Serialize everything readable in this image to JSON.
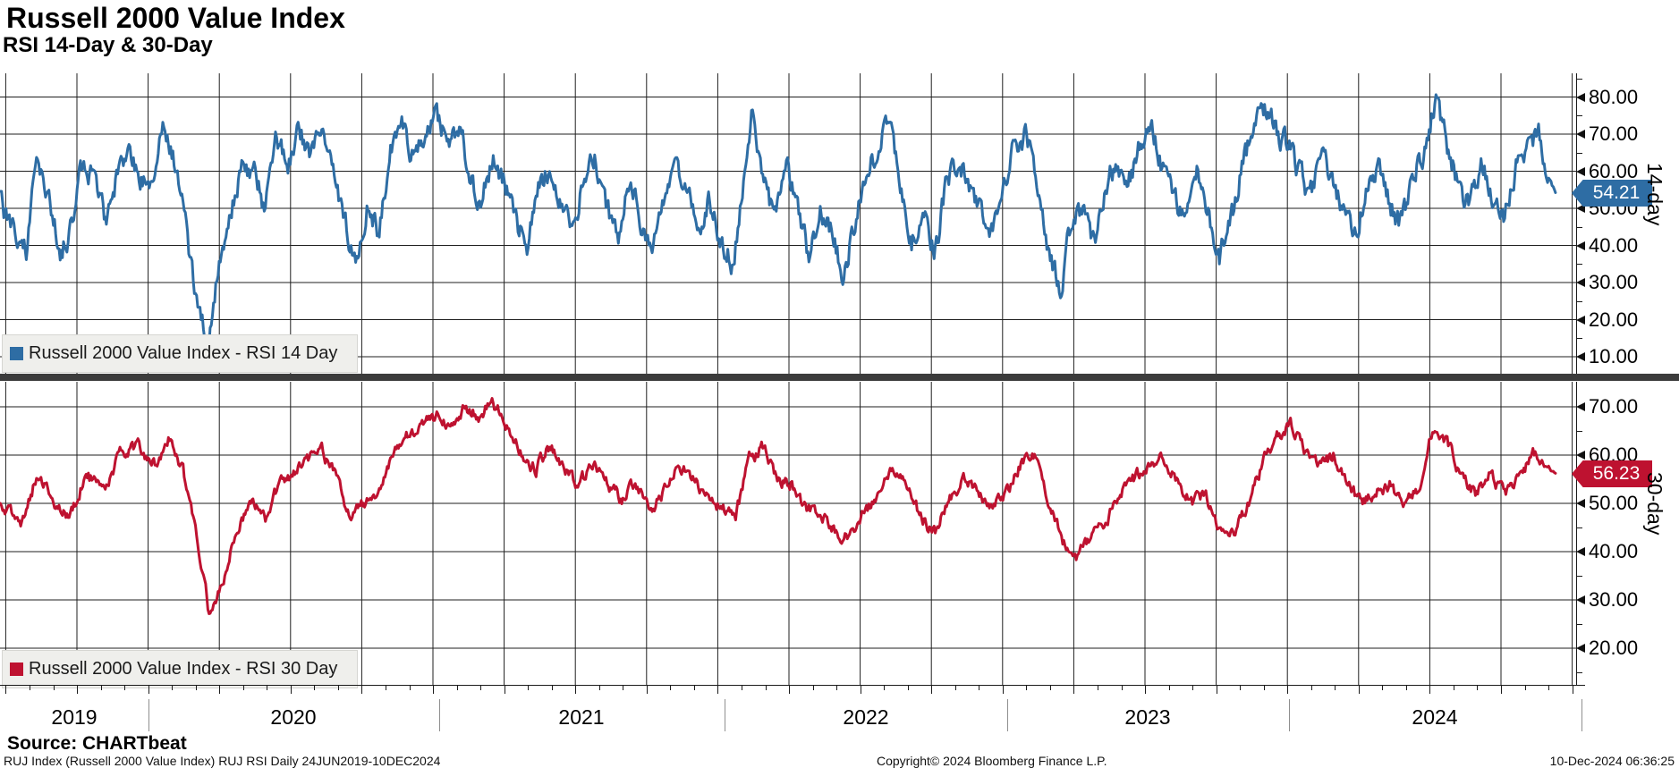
{
  "header": {
    "title": "Russell 2000 Value Index",
    "subtitle": "RSI 14-Day & 30-Day"
  },
  "colors": {
    "rsi14_blue": "#2e6da4",
    "rsi30_red": "#be1230",
    "grid": "#1f1f1f",
    "divider": "#3c3c3c",
    "legend_bg": "#efefec"
  },
  "x_axis": {
    "years": [
      "2019",
      "2020",
      "2021",
      "2022",
      "2023",
      "2024"
    ]
  },
  "panels": [
    {
      "id": "rsi14",
      "legend_label": "Russell 2000 Value Index - RSI 14 Day",
      "axis_title": "14-day",
      "last_value": 54.21,
      "last_value_label": "54.21",
      "color": "#2e6da4",
      "ticks": [
        80,
        70,
        60,
        50,
        40,
        30,
        20,
        10
      ],
      "tick_labels": [
        "80.00",
        "70.00",
        "60.00",
        "50.00",
        "40.00",
        "30.00",
        "20.00",
        "10.00"
      ],
      "minor_ticks": [
        85,
        75,
        65,
        55,
        45,
        35,
        25,
        15
      ]
    },
    {
      "id": "rsi30",
      "legend_label": "Russell 2000 Value Index - RSI 30 Day",
      "axis_title": "30-day",
      "last_value": 56.23,
      "last_value_label": "56.23",
      "color": "#be1230",
      "ticks": [
        70,
        60,
        50,
        40,
        30,
        20
      ],
      "tick_labels": [
        "70.00",
        "60.00",
        "50.00",
        "40.00",
        "30.00",
        "20.00"
      ],
      "minor_ticks": [
        65,
        55,
        45,
        35,
        25,
        15
      ]
    }
  ],
  "footer": {
    "source": "Source: CHARTbeat",
    "ticker_line": "RUJ Index (Russell 2000 Value Index) RUJ RSI  Daily 24JUN2019-10DEC2024",
    "copyright": "Copyright© 2024 Bloomberg Finance L.P.",
    "timestamp": "10-Dec-2024 06:36:25"
  },
  "chart_data": {
    "type": "line",
    "x_unit": "decimal_year",
    "x_range": [
      2019.48,
      2024.94
    ],
    "date_range": "24JUN2019-10DEC2024",
    "grid": true,
    "legend_position": "bottom-left-inside",
    "series": [
      {
        "name": "Russell 2000 Value Index - RSI 14 Day",
        "panel": 0,
        "ylim_labels": [
          10,
          80
        ],
        "last_value": 54.21,
        "noise_amp": 2.8,
        "seed": 14,
        "anchors": [
          [
            2019.48,
            52
          ],
          [
            2019.53,
            42
          ],
          [
            2019.57,
            38
          ],
          [
            2019.61,
            64
          ],
          [
            2019.65,
            54
          ],
          [
            2019.69,
            38
          ],
          [
            2019.73,
            45
          ],
          [
            2019.77,
            63
          ],
          [
            2019.81,
            57
          ],
          [
            2019.85,
            47
          ],
          [
            2019.89,
            58
          ],
          [
            2019.93,
            68
          ],
          [
            2019.97,
            58
          ],
          [
            2020.01,
            56
          ],
          [
            2020.05,
            71
          ],
          [
            2020.09,
            62
          ],
          [
            2020.13,
            45
          ],
          [
            2020.17,
            24
          ],
          [
            2020.21,
            16
          ],
          [
            2020.25,
            37
          ],
          [
            2020.29,
            48
          ],
          [
            2020.33,
            62
          ],
          [
            2020.37,
            60
          ],
          [
            2020.41,
            50
          ],
          [
            2020.45,
            68
          ],
          [
            2020.49,
            63
          ],
          [
            2020.53,
            71
          ],
          [
            2020.57,
            64
          ],
          [
            2020.61,
            74
          ],
          [
            2020.65,
            58
          ],
          [
            2020.69,
            46
          ],
          [
            2020.73,
            34
          ],
          [
            2020.77,
            52
          ],
          [
            2020.81,
            42
          ],
          [
            2020.85,
            67
          ],
          [
            2020.89,
            73
          ],
          [
            2020.93,
            64
          ],
          [
            2020.97,
            71
          ],
          [
            2021.01,
            74
          ],
          [
            2021.05,
            67
          ],
          [
            2021.09,
            73
          ],
          [
            2021.13,
            58
          ],
          [
            2021.17,
            52
          ],
          [
            2021.21,
            65
          ],
          [
            2021.25,
            57
          ],
          [
            2021.29,
            46
          ],
          [
            2021.33,
            40
          ],
          [
            2021.37,
            56
          ],
          [
            2021.41,
            61
          ],
          [
            2021.45,
            50
          ],
          [
            2021.49,
            43
          ],
          [
            2021.53,
            59
          ],
          [
            2021.57,
            63
          ],
          [
            2021.61,
            49
          ],
          [
            2021.65,
            43
          ],
          [
            2021.69,
            58
          ],
          [
            2021.73,
            47
          ],
          [
            2021.77,
            40
          ],
          [
            2021.81,
            54
          ],
          [
            2021.85,
            64
          ],
          [
            2021.89,
            54
          ],
          [
            2021.93,
            44
          ],
          [
            2021.97,
            53
          ],
          [
            2022.01,
            42
          ],
          [
            2022.05,
            35
          ],
          [
            2022.09,
            55
          ],
          [
            2022.12,
            76
          ],
          [
            2022.16,
            58
          ],
          [
            2022.2,
            47
          ],
          [
            2022.24,
            61
          ],
          [
            2022.28,
            51
          ],
          [
            2022.32,
            37
          ],
          [
            2022.36,
            51
          ],
          [
            2022.4,
            43
          ],
          [
            2022.44,
            31
          ],
          [
            2022.48,
            46
          ],
          [
            2022.52,
            59
          ],
          [
            2022.56,
            66
          ],
          [
            2022.6,
            73
          ],
          [
            2022.64,
            58
          ],
          [
            2022.68,
            41
          ],
          [
            2022.72,
            49
          ],
          [
            2022.76,
            37
          ],
          [
            2022.8,
            56
          ],
          [
            2022.84,
            63
          ],
          [
            2022.88,
            57
          ],
          [
            2022.92,
            49
          ],
          [
            2022.96,
            43
          ],
          [
            2023.0,
            57
          ],
          [
            2023.04,
            66
          ],
          [
            2023.08,
            69
          ],
          [
            2023.12,
            58
          ],
          [
            2023.16,
            38
          ],
          [
            2023.2,
            27
          ],
          [
            2023.24,
            46
          ],
          [
            2023.28,
            51
          ],
          [
            2023.32,
            41
          ],
          [
            2023.36,
            56
          ],
          [
            2023.4,
            63
          ],
          [
            2023.44,
            57
          ],
          [
            2023.48,
            67
          ],
          [
            2023.52,
            71
          ],
          [
            2023.56,
            61
          ],
          [
            2023.6,
            54
          ],
          [
            2023.64,
            44
          ],
          [
            2023.68,
            59
          ],
          [
            2023.72,
            49
          ],
          [
            2023.76,
            37
          ],
          [
            2023.8,
            46
          ],
          [
            2023.84,
            61
          ],
          [
            2023.88,
            71
          ],
          [
            2023.92,
            78
          ],
          [
            2023.96,
            71
          ],
          [
            2024.0,
            67
          ],
          [
            2024.04,
            59
          ],
          [
            2024.08,
            54
          ],
          [
            2024.12,
            63
          ],
          [
            2024.16,
            57
          ],
          [
            2024.2,
            49
          ],
          [
            2024.24,
            43
          ],
          [
            2024.28,
            56
          ],
          [
            2024.32,
            61
          ],
          [
            2024.36,
            51
          ],
          [
            2024.4,
            45
          ],
          [
            2024.44,
            59
          ],
          [
            2024.48,
            66
          ],
          [
            2024.52,
            80
          ],
          [
            2024.56,
            67
          ],
          [
            2024.6,
            57
          ],
          [
            2024.64,
            49
          ],
          [
            2024.68,
            63
          ],
          [
            2024.72,
            54
          ],
          [
            2024.76,
            47
          ],
          [
            2024.8,
            61
          ],
          [
            2024.84,
            67
          ],
          [
            2024.88,
            71
          ],
          [
            2024.91,
            60
          ],
          [
            2024.94,
            54.21
          ]
        ]
      },
      {
        "name": "Russell 2000 Value Index - RSI 30 Day",
        "panel": 1,
        "ylim_labels": [
          20,
          70
        ],
        "last_value": 56.23,
        "noise_amp": 1.1,
        "seed": 30,
        "anchors": [
          [
            2019.48,
            50
          ],
          [
            2019.55,
            46
          ],
          [
            2019.61,
            56
          ],
          [
            2019.67,
            50
          ],
          [
            2019.72,
            47
          ],
          [
            2019.78,
            56
          ],
          [
            2019.84,
            53
          ],
          [
            2019.9,
            60
          ],
          [
            2019.96,
            62
          ],
          [
            2020.02,
            58
          ],
          [
            2020.07,
            63
          ],
          [
            2020.12,
            57
          ],
          [
            2020.16,
            47
          ],
          [
            2020.21,
            28
          ],
          [
            2020.26,
            33
          ],
          [
            2020.31,
            45
          ],
          [
            2020.36,
            50
          ],
          [
            2020.41,
            47
          ],
          [
            2020.46,
            54
          ],
          [
            2020.51,
            56
          ],
          [
            2020.56,
            59
          ],
          [
            2020.61,
            61
          ],
          [
            2020.66,
            55
          ],
          [
            2020.71,
            47
          ],
          [
            2020.76,
            50
          ],
          [
            2020.81,
            52
          ],
          [
            2020.86,
            61
          ],
          [
            2020.91,
            64
          ],
          [
            2020.96,
            66
          ],
          [
            2021.01,
            68
          ],
          [
            2021.06,
            65
          ],
          [
            2021.11,
            70
          ],
          [
            2021.16,
            68
          ],
          [
            2021.21,
            71
          ],
          [
            2021.26,
            66
          ],
          [
            2021.31,
            60
          ],
          [
            2021.36,
            57
          ],
          [
            2021.41,
            62
          ],
          [
            2021.46,
            57
          ],
          [
            2021.51,
            54
          ],
          [
            2021.56,
            58
          ],
          [
            2021.61,
            54
          ],
          [
            2021.66,
            51
          ],
          [
            2021.71,
            54
          ],
          [
            2021.76,
            49
          ],
          [
            2021.81,
            52
          ],
          [
            2021.86,
            58
          ],
          [
            2021.91,
            55
          ],
          [
            2021.96,
            51
          ],
          [
            2022.01,
            49
          ],
          [
            2022.06,
            47
          ],
          [
            2022.11,
            59
          ],
          [
            2022.16,
            62
          ],
          [
            2022.21,
            55
          ],
          [
            2022.26,
            54
          ],
          [
            2022.31,
            49
          ],
          [
            2022.36,
            48
          ],
          [
            2022.41,
            44
          ],
          [
            2022.46,
            43
          ],
          [
            2022.51,
            48
          ],
          [
            2022.56,
            52
          ],
          [
            2022.61,
            58
          ],
          [
            2022.66,
            55
          ],
          [
            2022.71,
            47
          ],
          [
            2022.76,
            44
          ],
          [
            2022.81,
            50
          ],
          [
            2022.86,
            55
          ],
          [
            2022.91,
            53
          ],
          [
            2022.96,
            49
          ],
          [
            2023.01,
            52
          ],
          [
            2023.06,
            58
          ],
          [
            2023.11,
            60
          ],
          [
            2023.16,
            51
          ],
          [
            2023.21,
            42
          ],
          [
            2023.26,
            39
          ],
          [
            2023.31,
            43
          ],
          [
            2023.36,
            46
          ],
          [
            2023.41,
            52
          ],
          [
            2023.46,
            55
          ],
          [
            2023.51,
            58
          ],
          [
            2023.56,
            60
          ],
          [
            2023.61,
            55
          ],
          [
            2023.66,
            50
          ],
          [
            2023.71,
            52
          ],
          [
            2023.76,
            45
          ],
          [
            2023.81,
            44
          ],
          [
            2023.86,
            50
          ],
          [
            2023.91,
            58
          ],
          [
            2023.96,
            64
          ],
          [
            2024.01,
            66
          ],
          [
            2024.06,
            61
          ],
          [
            2024.11,
            58
          ],
          [
            2024.16,
            60
          ],
          [
            2024.21,
            54
          ],
          [
            2024.26,
            50
          ],
          [
            2024.31,
            52
          ],
          [
            2024.36,
            54
          ],
          [
            2024.41,
            50
          ],
          [
            2024.46,
            53
          ],
          [
            2024.51,
            66
          ],
          [
            2024.56,
            63
          ],
          [
            2024.61,
            55
          ],
          [
            2024.66,
            52
          ],
          [
            2024.71,
            56
          ],
          [
            2024.76,
            52
          ],
          [
            2024.81,
            55
          ],
          [
            2024.86,
            60
          ],
          [
            2024.9,
            58
          ],
          [
            2024.94,
            56.23
          ]
        ]
      }
    ]
  }
}
